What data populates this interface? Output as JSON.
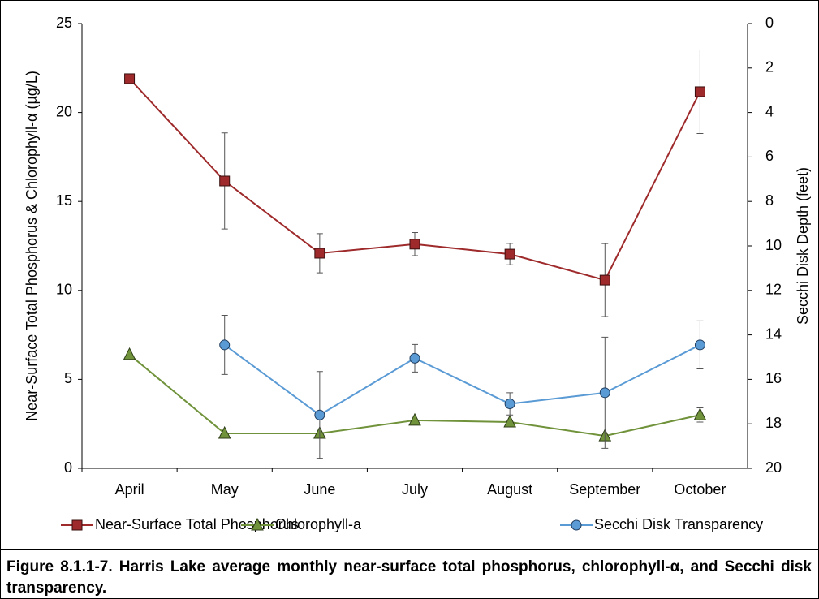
{
  "chart_data": {
    "type": "line",
    "categories": [
      "April",
      "May",
      "June",
      "July",
      "August",
      "September",
      "October"
    ],
    "ylabel": "Near-Surface Total Phosphorus & Chlorophyll-α  (µg/L)",
    "y2label": "Secchi Disk Depth (feet)",
    "ylim": [
      0,
      25
    ],
    "yticks": [
      0,
      5,
      10,
      15,
      20,
      25
    ],
    "y2lim": [
      0,
      20
    ],
    "y2ticks": [
      0,
      2,
      4,
      6,
      8,
      10,
      12,
      14,
      16,
      18,
      20
    ],
    "y2_reversed": true,
    "series": [
      {
        "name": "Near-Surface Total Phosphorus",
        "color": "#9e2a2b",
        "marker": "square",
        "values": [
          21.9,
          16.15,
          12.09,
          12.6,
          12.04,
          10.58,
          21.17
        ],
        "errors": [
          null,
          2.7,
          1.1,
          0.65,
          0.6,
          2.05,
          2.35
        ]
      },
      {
        "name": "Chlorophyll-a",
        "color": "#70923a",
        "marker": "triangle",
        "values": [
          6.39,
          1.96,
          1.96,
          2.7,
          2.6,
          1.82,
          3.0
        ],
        "errors": [
          null,
          null,
          null,
          null,
          null,
          null,
          0.4
        ]
      },
      {
        "name": "Secchi Disk Transparency",
        "color": "#5b9bd5",
        "marker": "circle",
        "axis": "y2",
        "values": [
          null,
          14.45,
          17.6,
          15.05,
          17.1,
          16.6,
          14.45
        ],
        "errors": [
          null,
          1.33,
          1.95,
          0.62,
          0.5,
          2.5,
          1.08
        ]
      }
    ]
  },
  "caption": "Figure 8.1.1-7.  Harris Lake average monthly near-surface total phosphorus, chlorophyll-α, and Secchi disk transparency."
}
